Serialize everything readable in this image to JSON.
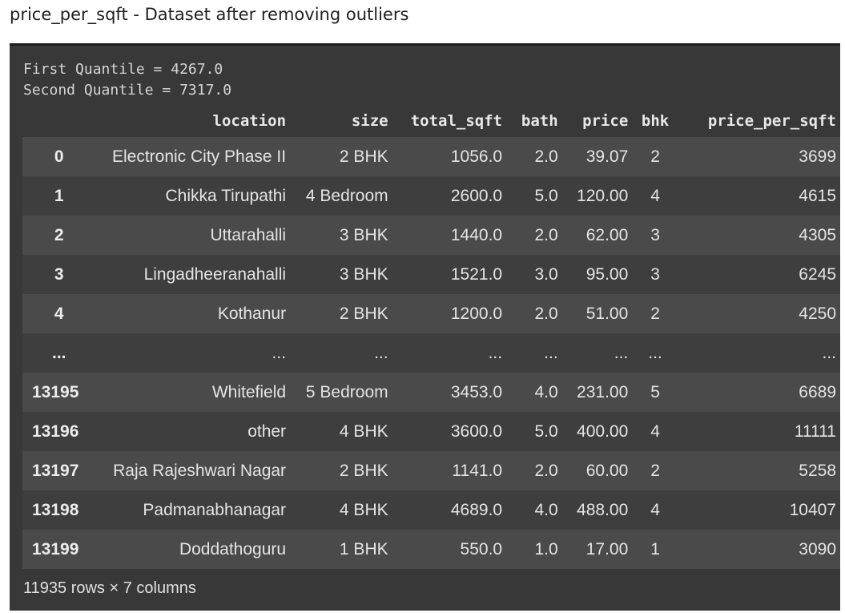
{
  "page": {
    "title": "price_per_sqft - Dataset after removing outliers"
  },
  "stdout": {
    "lines": [
      "First Quantile = 4267.0",
      "Second Quantile = 7317.0"
    ]
  },
  "table": {
    "columns": [
      "",
      "location",
      "size",
      "total_sqft",
      "bath",
      "price",
      "bhk",
      "price_per_sqft"
    ],
    "rows": [
      {
        "index": "0",
        "location": "Electronic City Phase II",
        "size": "2 BHK",
        "total_sqft": "1056.0",
        "bath": "2.0",
        "price": "39.07",
        "bhk": "2",
        "price_per_sqft": "3699"
      },
      {
        "index": "1",
        "location": "Chikka Tirupathi",
        "size": "4 Bedroom",
        "total_sqft": "2600.0",
        "bath": "5.0",
        "price": "120.00",
        "bhk": "4",
        "price_per_sqft": "4615"
      },
      {
        "index": "2",
        "location": "Uttarahalli",
        "size": "3 BHK",
        "total_sqft": "1440.0",
        "bath": "2.0",
        "price": "62.00",
        "bhk": "3",
        "price_per_sqft": "4305"
      },
      {
        "index": "3",
        "location": "Lingadheeranahalli",
        "size": "3 BHK",
        "total_sqft": "1521.0",
        "bath": "3.0",
        "price": "95.00",
        "bhk": "3",
        "price_per_sqft": "6245"
      },
      {
        "index": "4",
        "location": "Kothanur",
        "size": "2 BHK",
        "total_sqft": "1200.0",
        "bath": "2.0",
        "price": "51.00",
        "bhk": "2",
        "price_per_sqft": "4250"
      },
      {
        "index": "...",
        "location": "...",
        "size": "...",
        "total_sqft": "...",
        "bath": "...",
        "price": "...",
        "bhk": "...",
        "price_per_sqft": "..."
      },
      {
        "index": "13195",
        "location": "Whitefield",
        "size": "5 Bedroom",
        "total_sqft": "3453.0",
        "bath": "4.0",
        "price": "231.00",
        "bhk": "5",
        "price_per_sqft": "6689"
      },
      {
        "index": "13196",
        "location": "other",
        "size": "4 BHK",
        "total_sqft": "3600.0",
        "bath": "5.0",
        "price": "400.00",
        "bhk": "4",
        "price_per_sqft": "11111"
      },
      {
        "index": "13197",
        "location": "Raja Rajeshwari Nagar",
        "size": "2 BHK",
        "total_sqft": "1141.0",
        "bath": "2.0",
        "price": "60.00",
        "bhk": "2",
        "price_per_sqft": "5258"
      },
      {
        "index": "13198",
        "location": "Padmanabhanagar",
        "size": "4 BHK",
        "total_sqft": "4689.0",
        "bath": "4.0",
        "price": "488.00",
        "bhk": "4",
        "price_per_sqft": "10407"
      },
      {
        "index": "13199",
        "location": "Doddathoguru",
        "size": "1 BHK",
        "total_sqft": "550.0",
        "bath": "1.0",
        "price": "17.00",
        "bhk": "1",
        "price_per_sqft": "3090"
      }
    ]
  },
  "shape": "11935 rows × 7 columns",
  "colors": {
    "panel_bg": "#383838",
    "row_odd": "#4a4a4a",
    "row_even": "#3e3e3e"
  }
}
